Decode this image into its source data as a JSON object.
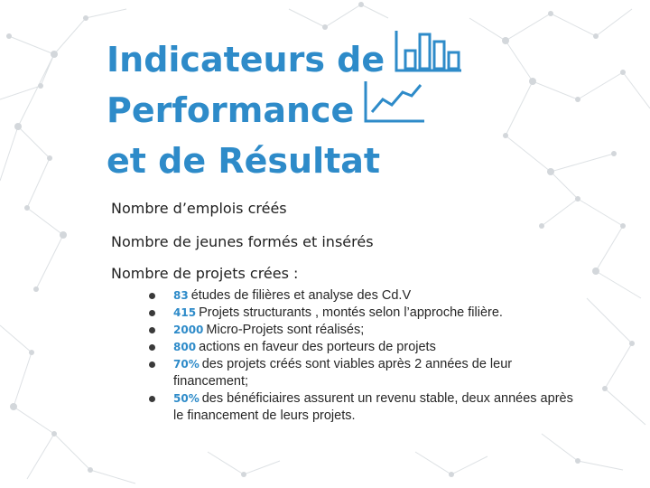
{
  "title": {
    "line1": "Indicateurs de",
    "line2": "Performance",
    "line3": "et de Résultat"
  },
  "icons": {
    "bar_chart": "bar-chart-icon",
    "line_chart": "line-chart-icon"
  },
  "colors": {
    "accent": "#2e8bc9",
    "text": "#262626",
    "network": "#d0d4d8"
  },
  "headings": [
    "Nombre d’emplois créés",
    "Nombre de jeunes formés et insérés",
    "Nombre de projets crées :"
  ],
  "bullets": [
    {
      "num": "83",
      "text": "études de filières et analyse des Cd.V"
    },
    {
      "num": "415",
      "text": "Projets structurants , montés selon l’approche filière."
    },
    {
      "num": "2000",
      "text": "Micro-Projets sont réalisés;"
    },
    {
      "num": "800",
      "text": "actions en faveur des porteurs de projets"
    },
    {
      "num": "70%",
      "text": "des projets créés sont viables après 2 années de leur financement;"
    },
    {
      "num": "50%",
      "text": "des bénéficiaires assurent un revenu stable, deux années après le   financement de leurs projets."
    }
  ]
}
